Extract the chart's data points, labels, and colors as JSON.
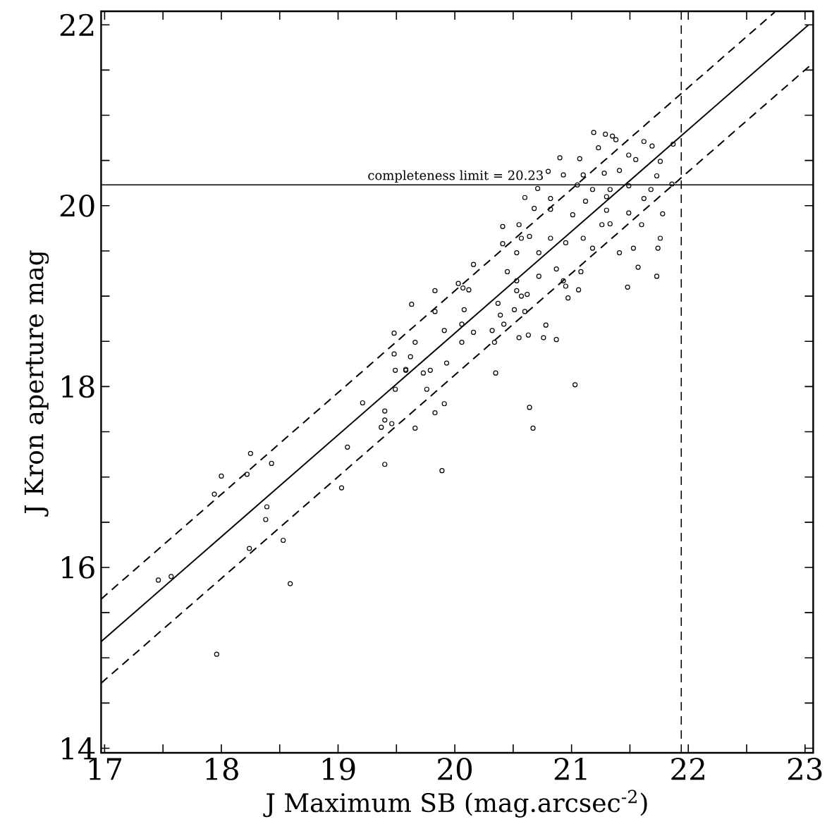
{
  "chart_data": {
    "type": "scatter",
    "xlabel": "J Maximum SB (mag.arcsec$^{-2}$)",
    "ylabel": "J Kron aperture mag",
    "xlim": [
      16.97,
      23.07
    ],
    "ylim": [
      13.95,
      22.15
    ],
    "xticks": [
      17,
      {
        "value": 17.5,
        "label": null
      },
      18,
      {
        "value": 18.5,
        "label": null
      },
      19,
      {
        "value": 19.5,
        "label": null
      },
      20,
      {
        "value": 20.5,
        "label": null
      },
      21,
      {
        "value": 21.5,
        "label": null
      },
      22,
      {
        "value": 22.5,
        "label": null
      },
      23
    ],
    "yticks": [
      14,
      {
        "value": 14.5,
        "label": null
      },
      {
        "value": 15,
        "label": null
      },
      {
        "value": 15.5,
        "label": null
      },
      16,
      {
        "value": 16.5,
        "label": null
      },
      {
        "value": 17,
        "label": null
      },
      {
        "value": 17.5,
        "label": null
      },
      18,
      {
        "value": 18.5,
        "label": null
      },
      {
        "value": 19,
        "label": null
      },
      {
        "value": 19.5,
        "label": null
      },
      20,
      {
        "value": 20.5,
        "label": null
      },
      {
        "value": 21,
        "label": null
      },
      {
        "value": 21.5,
        "label": null
      },
      22
    ],
    "ref_lines": [
      {
        "axis": "y",
        "value": 20.23,
        "label": "completeness limit = 20.23",
        "color": "#000000",
        "line_style": "solid"
      },
      {
        "axis": "x",
        "value": 21.94,
        "color": "#000000",
        "line_style": "dashed"
      }
    ],
    "series": [
      {
        "color": "#000000",
        "marker": "circle",
        "x": [
          21.19,
          21.29,
          21.35,
          21.38,
          21.62,
          21.69,
          21.23,
          20.9,
          21.07,
          21.49,
          21.55,
          21.76,
          20.8,
          20.93,
          21.1,
          21.28,
          21.41,
          21.73,
          21.87,
          20.71,
          21.05,
          21.18,
          21.33,
          21.49,
          21.68,
          21.86,
          20.6,
          20.82,
          21.12,
          21.3,
          21.62,
          20.41,
          20.55,
          20.68,
          20.82,
          21.01,
          21.3,
          21.49,
          21.78,
          20.57,
          20.64,
          20.82,
          20.95,
          21.1,
          21.26,
          21.33,
          21.6,
          20.41,
          20.53,
          20.72,
          21.18,
          21.41,
          21.53,
          21.76,
          21.74,
          20.16,
          20.45,
          20.53,
          20.72,
          20.87,
          20.93,
          21.08,
          21.57,
          21.73,
          21.48,
          20.03,
          20.07,
          20.12,
          19.83,
          19.63,
          19.83,
          20.08,
          20.37,
          20.53,
          20.62,
          20.95,
          20.97,
          21.06,
          20.57,
          20.51,
          20.6,
          19.66,
          19.91,
          20.06,
          20.16,
          20.32,
          20.39,
          20.34,
          20.42,
          20.55,
          20.63,
          20.78,
          20.87,
          20.76,
          19.62,
          19.73,
          19.79,
          19.93,
          20.06,
          20.35,
          21.03,
          20.64,
          20.67,
          19.49,
          19.58,
          19.76,
          19.91,
          19.83,
          19.66,
          19.89,
          17.46,
          17.57,
          17.96,
          17.94,
          18.0,
          18.22,
          18.25,
          18.43,
          18.24,
          18.38,
          18.39,
          18.53,
          18.59,
          19.03,
          19.08,
          19.4,
          19.37,
          19.46,
          19.4,
          19.48,
          19.48,
          19.49,
          19.58,
          19.21,
          19.4
        ],
        "values": [
          20.81,
          20.79,
          20.77,
          20.73,
          20.71,
          20.66,
          20.64,
          20.53,
          20.52,
          20.56,
          20.51,
          20.49,
          20.38,
          20.34,
          20.34,
          20.36,
          20.39,
          20.33,
          20.68,
          20.19,
          20.23,
          20.18,
          20.18,
          20.22,
          20.18,
          20.24,
          20.09,
          20.08,
          20.05,
          20.1,
          20.08,
          19.77,
          19.79,
          19.97,
          19.96,
          19.9,
          19.95,
          19.92,
          19.91,
          19.64,
          19.66,
          19.64,
          19.59,
          19.64,
          19.79,
          19.8,
          19.79,
          19.58,
          19.48,
          19.48,
          19.53,
          19.48,
          19.53,
          19.64,
          19.53,
          19.35,
          19.27,
          19.17,
          19.22,
          19.3,
          19.17,
          19.27,
          19.32,
          19.22,
          19.1,
          19.14,
          19.09,
          19.07,
          19.06,
          18.91,
          18.83,
          18.85,
          18.92,
          19.06,
          19.02,
          19.11,
          18.98,
          19.07,
          19.0,
          18.85,
          18.83,
          18.49,
          18.62,
          18.69,
          18.6,
          18.62,
          18.79,
          18.49,
          18.69,
          18.54,
          18.57,
          18.68,
          18.52,
          18.54,
          18.33,
          18.15,
          18.18,
          18.26,
          18.49,
          18.15,
          18.02,
          17.77,
          17.54,
          17.97,
          18.19,
          17.97,
          17.81,
          17.71,
          17.54,
          17.07,
          15.86,
          15.9,
          15.04,
          16.81,
          17.01,
          17.03,
          17.26,
          17.15,
          16.21,
          16.53,
          16.67,
          16.3,
          15.82,
          16.88,
          17.33,
          17.14,
          17.55,
          17.59,
          17.73,
          18.59,
          18.36,
          18.18,
          18.18,
          17.82,
          17.63
        ]
      },
      {
        "type": "line",
        "color": "#000000",
        "line_style": "solid",
        "x": [
          16.97,
          23.03
        ],
        "values": [
          15.18,
          22.0
        ]
      },
      {
        "type": "line",
        "color": "#000000",
        "line_style": "dashed",
        "x": [
          16.97,
          22.74
        ],
        "values": [
          15.65,
          22.14
        ]
      },
      {
        "type": "line",
        "color": "#000000",
        "line_style": "dashed",
        "x": [
          16.97,
          23.07
        ],
        "values": [
          14.72,
          21.58
        ]
      }
    ]
  }
}
